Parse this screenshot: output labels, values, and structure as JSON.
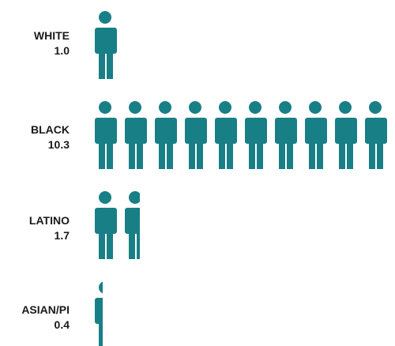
{
  "chart_data": {
    "type": "pictogram",
    "unit_value": 1,
    "icon": "person-icon",
    "icon_color": "#187f86",
    "categories": [
      "WHITE",
      "BLACK",
      "LATINO",
      "ASIAN/PI"
    ],
    "values": [
      1.0,
      10.3,
      1.7,
      0.4
    ],
    "value_labels": [
      "1.0",
      "10.3",
      "1.7",
      "0.4"
    ],
    "title": "",
    "xlabel": "",
    "ylabel": ""
  }
}
